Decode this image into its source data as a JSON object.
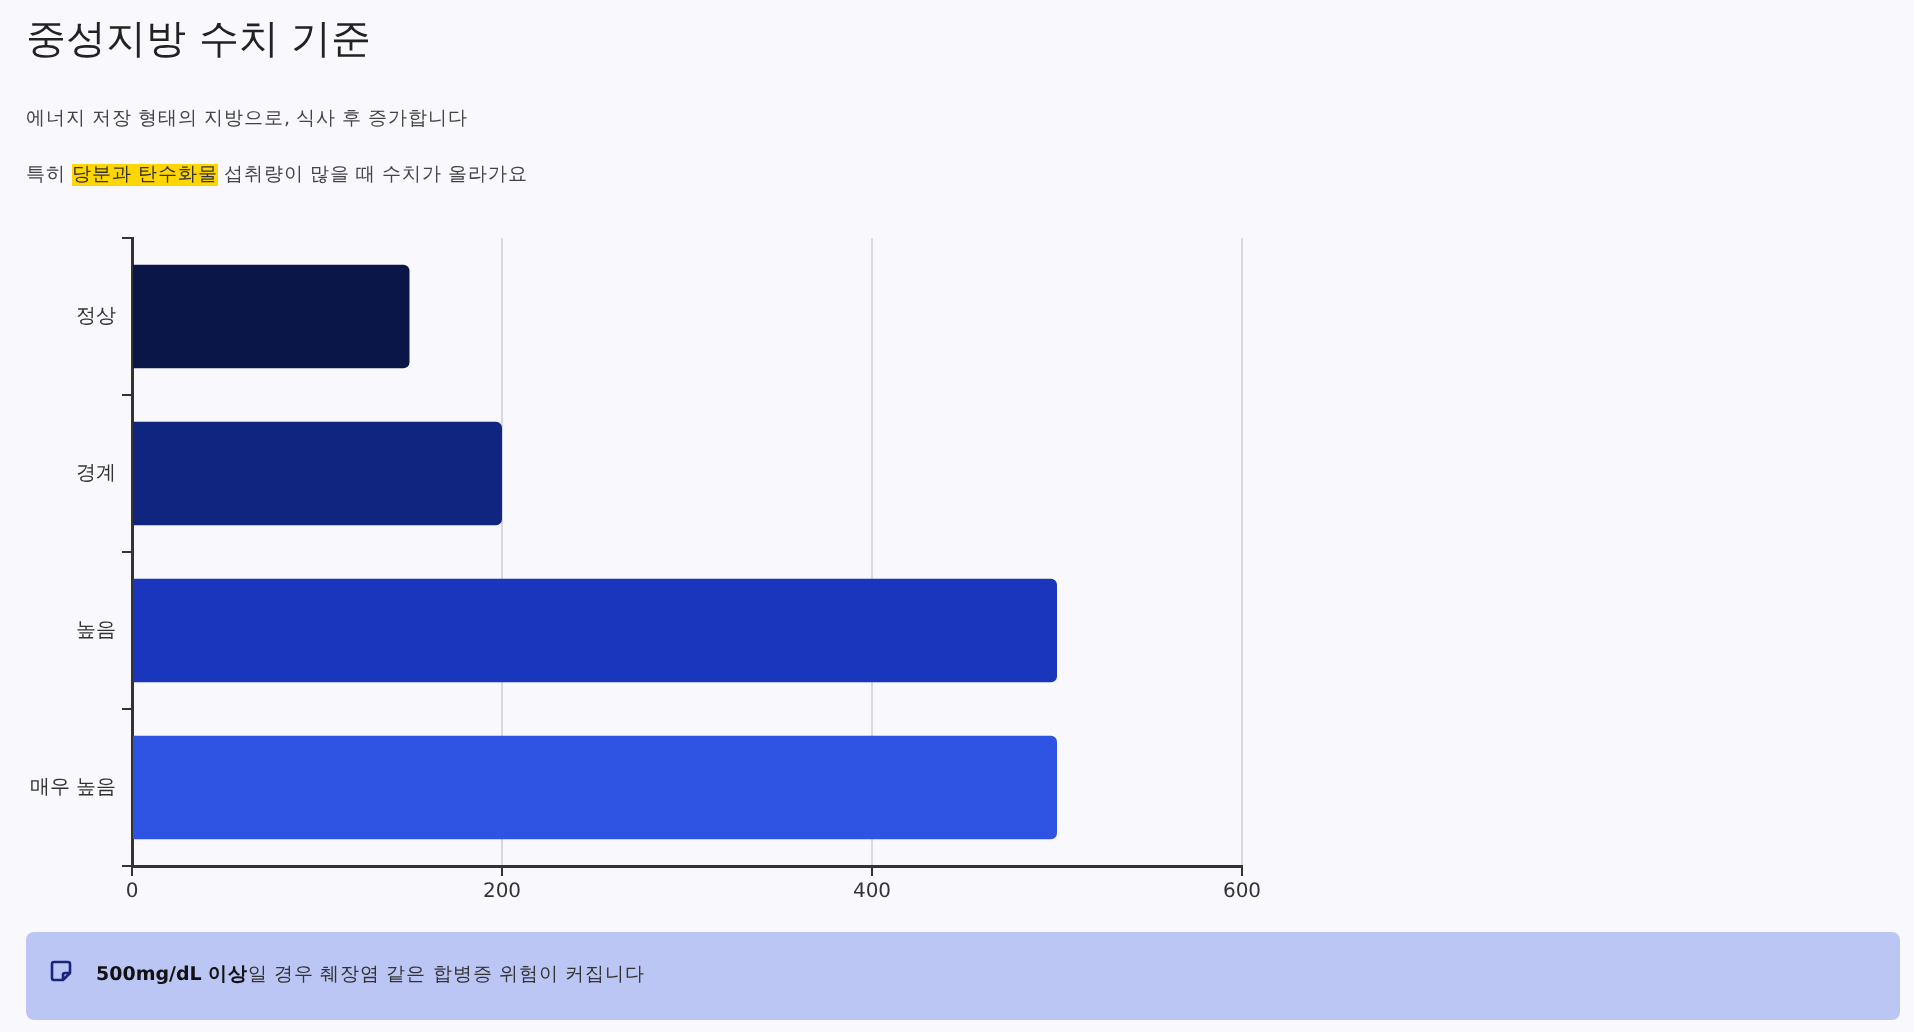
{
  "chart_data": {
    "type": "bar",
    "title": "중성지방 수치 기준",
    "subtitle": "에너지 저장 형태의 지방으로, 식사 후 증가합니다",
    "annotations": [
      "특히",
      "당분과 탄수화물",
      "섭취량이 많을 때 수치가 올라가요",
      "500mg/dL 이상",
      "일 경우 췌장염 같은 합병증 위험이 커집니다"
    ],
    "orientation": "horizontal",
    "categories": [
      "정상",
      "경계",
      "높음",
      "매우 높음"
    ],
    "values": [
      150,
      200,
      500,
      500
    ],
    "colors": [
      "#0b1648",
      "#0f2580",
      "#1a36bd",
      "#2f54e3"
    ],
    "xlim": [
      0,
      600
    ],
    "xticks": [
      0,
      200,
      400,
      600
    ],
    "grid": "x"
  }
}
